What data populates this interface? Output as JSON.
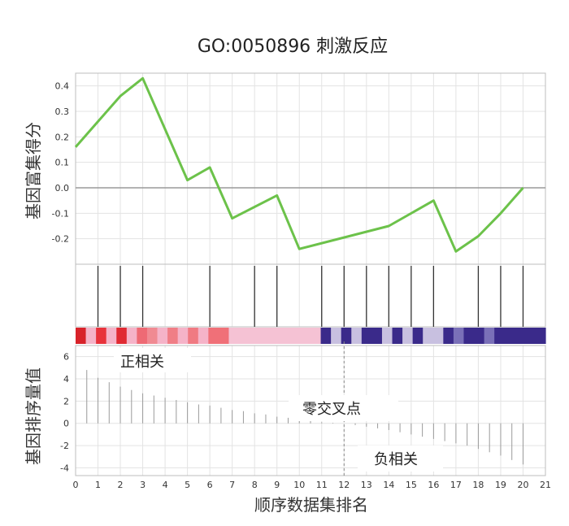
{
  "chart_data": {
    "type": "line",
    "title": "GO:0050896 刺激反应",
    "xlabel": "顺序数据集排名",
    "ylabel_top": "基因富集得分",
    "ylabel_bottom": "基因排序量值",
    "xlim": [
      0,
      21
    ],
    "x_ticks": [
      "0",
      "1",
      "2",
      "3",
      "4",
      "5",
      "6",
      "7",
      "8",
      "9",
      "10",
      "11",
      "12",
      "13",
      "14",
      "15",
      "16",
      "17",
      "18",
      "19",
      "20",
      "21"
    ],
    "top_ylim": [
      -0.3,
      0.45
    ],
    "top_y_ticks": [
      "0.4",
      "0.3",
      "0.2",
      "0.1",
      "0.0",
      "-0.1",
      "-0.2"
    ],
    "top_y_tick_values": [
      0.4,
      0.3,
      0.2,
      0.1,
      0.0,
      -0.1,
      -0.2
    ],
    "series": [
      {
        "color": "#6cc24a",
        "x": [
          0,
          1,
          2,
          3,
          5,
          6,
          7,
          9,
          10,
          14,
          16,
          17,
          18,
          19,
          20
        ],
        "y": [
          0.16,
          0.26,
          0.36,
          0.43,
          0.03,
          0.08,
          -0.12,
          -0.03,
          -0.24,
          -0.15,
          -0.05,
          -0.25,
          -0.19,
          -0.1,
          0.0
        ]
      }
    ],
    "hit_positions": [
      1,
      2,
      3,
      6,
      8,
      9,
      11,
      12,
      13,
      14,
      15,
      16,
      18,
      19,
      20
    ],
    "heatmap_colors": [
      "#d8232a",
      "#f5b3c8",
      "#e8333b",
      "#f5b3c8",
      "#e02a32",
      "#f5b3c8",
      "#ee6a74",
      "#f08a92",
      "#f5b3c8",
      "#f07e86",
      "#f5b3c8",
      "#f07a82",
      "#f5b3c8",
      "#f07078",
      "#f07078",
      "#f5c2d4",
      "#f5c2d4",
      "#f5c2d4",
      "#f5c2d4",
      "#f5c2d4",
      "#f5c2d4",
      "#f5c2d4",
      "#f5c2d4",
      "#f5c2d4",
      "#3a2a8a",
      "#c8c0e0",
      "#3a2a8a",
      "#c8c0e0",
      "#3a2a8a",
      "#3a2a8a",
      "#c8c0e0",
      "#3a2a8a",
      "#c8c0e0",
      "#3a2a8a",
      "#c8c0e0",
      "#c8c0e0",
      "#3a2a8a",
      "#7a70b8",
      "#3a2a8a",
      "#3a2a8a",
      "#7a70b8",
      "#3a2a8a",
      "#3a2a8a",
      "#3a2a8a",
      "#3a2a8a",
      "#3a2a8a"
    ],
    "bottom_ylim": [
      -4.7,
      7
    ],
    "bottom_y_ticks": [
      "6",
      "4",
      "2",
      "0",
      "-2",
      "-4"
    ],
    "bottom_y_tick_values": [
      6,
      4,
      2,
      0,
      -2,
      -4
    ],
    "rank_x": [
      0.5,
      1,
      1.5,
      2,
      2.5,
      3,
      3.5,
      4,
      4.5,
      5,
      5.5,
      6,
      6.5,
      7,
      7.5,
      8,
      8.5,
      9,
      9.5,
      10,
      10.5,
      11,
      11.5,
      12.5,
      13,
      13.5,
      14,
      14.5,
      15,
      15.5,
      16,
      16.5,
      17,
      17.5,
      18,
      18.5,
      19,
      19.5,
      20
    ],
    "rank_y": [
      4.8,
      4.1,
      3.7,
      3.3,
      3.0,
      2.7,
      2.5,
      2.3,
      2.1,
      1.9,
      1.7,
      1.6,
      1.4,
      1.2,
      1.1,
      0.9,
      0.8,
      0.6,
      0.5,
      0.3,
      0.2,
      0.1,
      0.05,
      -0.15,
      -0.3,
      -0.45,
      -0.6,
      -0.8,
      -1.0,
      -1.2,
      -1.4,
      -1.6,
      -1.8,
      -2.0,
      -2.3,
      -2.6,
      -2.9,
      -3.3,
      -3.7
    ],
    "zero_cross_x": 12,
    "annotations": {
      "positive": "正相关",
      "zero_cross": "零交叉点",
      "negative": "负相关"
    }
  }
}
